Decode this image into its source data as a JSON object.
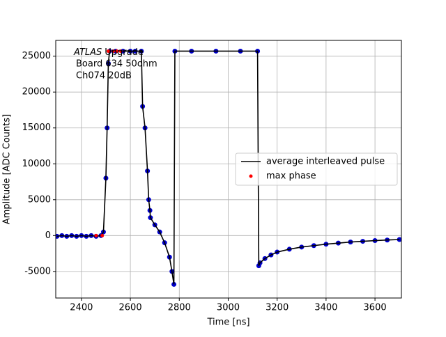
{
  "chart_data": {
    "type": "line",
    "xlabel": "Time [ns]",
    "ylabel": "Amplitude [ADC Counts]",
    "annotation": {
      "experiment": "ATLAS",
      "label": "Upgrade",
      "lines": [
        "Board 634 50ohm",
        "Ch074 20dB"
      ]
    },
    "x": [
      2300,
      2320,
      2340,
      2360,
      2380,
      2400,
      2420,
      2440,
      2460,
      2480,
      2490,
      2500,
      2505,
      2510,
      2515,
      2540,
      2570,
      2600,
      2620,
      2645,
      2650,
      2660,
      2670,
      2675,
      2680,
      2682,
      2700,
      2720,
      2740,
      2760,
      2770,
      2778,
      2782,
      2850,
      2950,
      3050,
      3120,
      3125,
      3130,
      3150,
      3175,
      3200,
      3250,
      3300,
      3350,
      3400,
      3450,
      3500,
      3550,
      3600,
      3650,
      3700
    ],
    "series": [
      {
        "name": "average interleaved pulse",
        "color": "#000000",
        "marker_color": "#0000cc",
        "values": [
          -100,
          0,
          -100,
          0,
          -100,
          0,
          -100,
          0,
          -100,
          0,
          500,
          8000,
          15000,
          24000,
          25700,
          25700,
          25700,
          25700,
          25700,
          25700,
          18000,
          15000,
          9000,
          5000,
          3500,
          2500,
          1500,
          500,
          -1000,
          -3000,
          -5000,
          -6800,
          25700,
          25700,
          25700,
          25700,
          25700,
          -4200,
          -3800,
          -3200,
          -2700,
          -2300,
          -1900,
          -1600,
          -1400,
          -1200,
          -1050,
          -900,
          -800,
          -700,
          -620,
          -550
        ]
      },
      {
        "name": "max phase",
        "type": "scatter",
        "color": "#ff0000",
        "x": [
          2460,
          2485,
          2510,
          2530,
          2545,
          2560
        ],
        "values": [
          0,
          0,
          25700,
          25700,
          25700,
          25700
        ]
      }
    ],
    "xlim": [
      2295,
      3708
    ],
    "ylim": [
      -8700,
      27200
    ],
    "xticks": [
      2400,
      2600,
      2800,
      3000,
      3200,
      3400,
      3600
    ],
    "yticks": [
      -5000,
      0,
      5000,
      10000,
      15000,
      20000,
      25000
    ],
    "grid": true,
    "legend": "center right"
  }
}
